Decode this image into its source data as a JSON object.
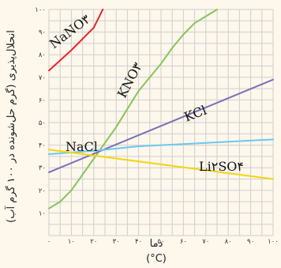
{
  "chart_data": {
    "type": "line",
    "ylabel": "انحلال‌پذیری (گرم حل‌شونده در ۱۰۰ گرم آب)",
    "xlabel_top": "دما",
    "xlabel_bottom": "(°C)",
    "xlim": [
      0,
      100
    ],
    "ylim": [
      0,
      100
    ],
    "x_ticks": [
      0,
      10,
      20,
      30,
      40,
      50,
      60,
      70,
      80,
      90,
      100
    ],
    "y_ticks": [
      10,
      20,
      30,
      40,
      50,
      60,
      70,
      80,
      90,
      100
    ],
    "x_tick_labels": [
      "۰",
      "۱۰",
      "۲۰",
      "۳۰",
      "۴۰",
      "۵۰",
      "۶۰",
      "۷۰",
      "۸۰",
      "۹۰",
      "۱۰۰"
    ],
    "y_tick_labels": [
      "۱۰",
      "۲۰",
      "۳۰",
      "۴۰",
      "۵۰",
      "۶۰",
      "۷۰",
      "۸۰",
      "۹۰",
      "۱۰۰"
    ],
    "grid": true,
    "series": [
      {
        "name": "NaNO۳",
        "color": "#e5242b",
        "x": [
          0,
          10,
          20,
          24
        ],
        "y": [
          73,
          82,
          92,
          100
        ]
      },
      {
        "name": "KNO۳",
        "color": "#86c55a",
        "x": [
          0,
          5,
          10,
          15,
          20,
          25,
          30,
          35,
          40,
          45,
          50,
          55,
          60,
          65,
          70,
          75
        ],
        "y": [
          12,
          15,
          20,
          27,
          34,
          41,
          48,
          56,
          64,
          70,
          76,
          83,
          89,
          94,
          97,
          100
        ]
      },
      {
        "name": "KCl",
        "color": "#7b6fb5",
        "x": [
          0,
          100
        ],
        "y": [
          28,
          69
        ]
      },
      {
        "name": "NaCl",
        "color": "#6ac8ef",
        "x": [
          0,
          20,
          40,
          60,
          80,
          100
        ],
        "y": [
          36,
          37.5,
          39.5,
          40.5,
          41.5,
          42.5
        ]
      },
      {
        "name": "Li۲SO۴",
        "color": "#f3d50e",
        "x": [
          0,
          100
        ],
        "y": [
          38,
          25
        ]
      }
    ]
  }
}
